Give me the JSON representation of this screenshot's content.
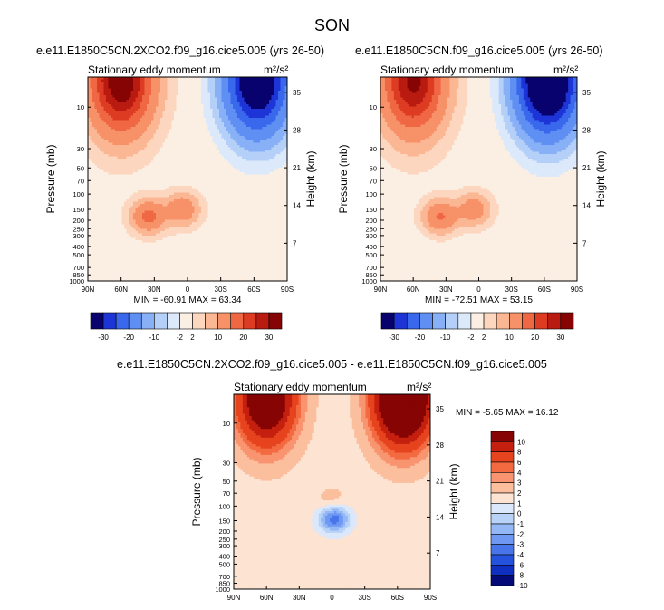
{
  "main_title": "SON",
  "chart_data": [
    {
      "type": "heatmap",
      "case_title": "e.e11.E1850C5CN.2XCO2.f09_g16.cice5.005 (yrs 26-50)",
      "title": "Stationary eddy momentum",
      "units": "m²/s²",
      "xlabel": "",
      "ylabel": "Pressure (mb)",
      "ylabel_right": "Height (km)",
      "x_ticks": [
        "90N",
        "60N",
        "30N",
        "0",
        "30S",
        "60S",
        "90S"
      ],
      "y_ticks": [
        "10",
        "30",
        "50",
        "70",
        "100",
        "150",
        "200",
        "250",
        "300",
        "400",
        "500",
        "700",
        "850",
        "1000"
      ],
      "height_ticks": [
        "35",
        "28",
        "21",
        "14",
        "7"
      ],
      "stats": "MIN = -60.91   MAX = 63.34",
      "colorbar_labels": [
        "-30",
        "-20",
        "-10",
        "-2",
        "2",
        "10",
        "20",
        "30"
      ],
      "features": [
        {
          "lat": 60,
          "p": 5,
          "value": 60
        },
        {
          "lat": -63,
          "p": 5,
          "value": -60
        },
        {
          "lat": 35,
          "p": 180,
          "value": 22
        },
        {
          "lat": 5,
          "p": 150,
          "value": 16
        }
      ]
    },
    {
      "type": "heatmap",
      "case_title": "e.e11.E1850C5CN.f09_g16.cice5.005 (yrs 26-50)",
      "title": "Stationary eddy momentum",
      "units": "m²/s²",
      "xlabel": "",
      "ylabel": "Pressure (mb)",
      "ylabel_right": "Height (km)",
      "x_ticks": [
        "90N",
        "60N",
        "30N",
        "0",
        "30S",
        "60S",
        "90S"
      ],
      "y_ticks": [
        "10",
        "30",
        "50",
        "70",
        "100",
        "150",
        "200",
        "250",
        "300",
        "400",
        "500",
        "700",
        "850",
        "1000"
      ],
      "height_ticks": [
        "35",
        "28",
        "21",
        "14",
        "7"
      ],
      "stats": "MIN = -72.51   MAX = 53.15",
      "colorbar_labels": [
        "-30",
        "-20",
        "-10",
        "-2",
        "2",
        "10",
        "20",
        "30"
      ],
      "features": [
        {
          "lat": 60,
          "p": 5,
          "value": 52
        },
        {
          "lat": -63,
          "p": 5,
          "value": -72
        },
        {
          "lat": 35,
          "p": 180,
          "value": 20
        },
        {
          "lat": 5,
          "p": 150,
          "value": 14
        }
      ]
    },
    {
      "type": "heatmap",
      "case_title": "e.e11.E1850C5CN.2XCO2.f09_g16.cice5.005 - e.e11.E1850C5CN.f09_g16.cice5.005",
      "title": "Stationary eddy momentum",
      "units": "m²/s²",
      "xlabel": "",
      "ylabel": "Pressure (mb)",
      "ylabel_right": "Height (km)",
      "x_ticks": [
        "90N",
        "60N",
        "30N",
        "0",
        "30S",
        "60S",
        "90S"
      ],
      "y_ticks": [
        "10",
        "30",
        "50",
        "70",
        "100",
        "150",
        "200",
        "250",
        "300",
        "400",
        "500",
        "700",
        "850",
        "1000"
      ],
      "height_ticks": [
        "35",
        "28",
        "21",
        "14",
        "7"
      ],
      "stats": "MIN = -5.65   MAX = 16.12",
      "colorbar_labels": [
        "10",
        "8",
        "6",
        "4",
        "3",
        "2",
        "1",
        "0",
        "-1",
        "-2",
        "-3",
        "-4",
        "-6",
        "-8",
        "-10"
      ],
      "features": [
        {
          "lat": 60,
          "p": 5,
          "value": 12
        },
        {
          "lat": -65,
          "p": 5,
          "value": 16
        },
        {
          "lat": -2,
          "p": 140,
          "value": -5.6
        },
        {
          "lat": 0,
          "p": 95,
          "value": 1.5
        }
      ]
    }
  ]
}
